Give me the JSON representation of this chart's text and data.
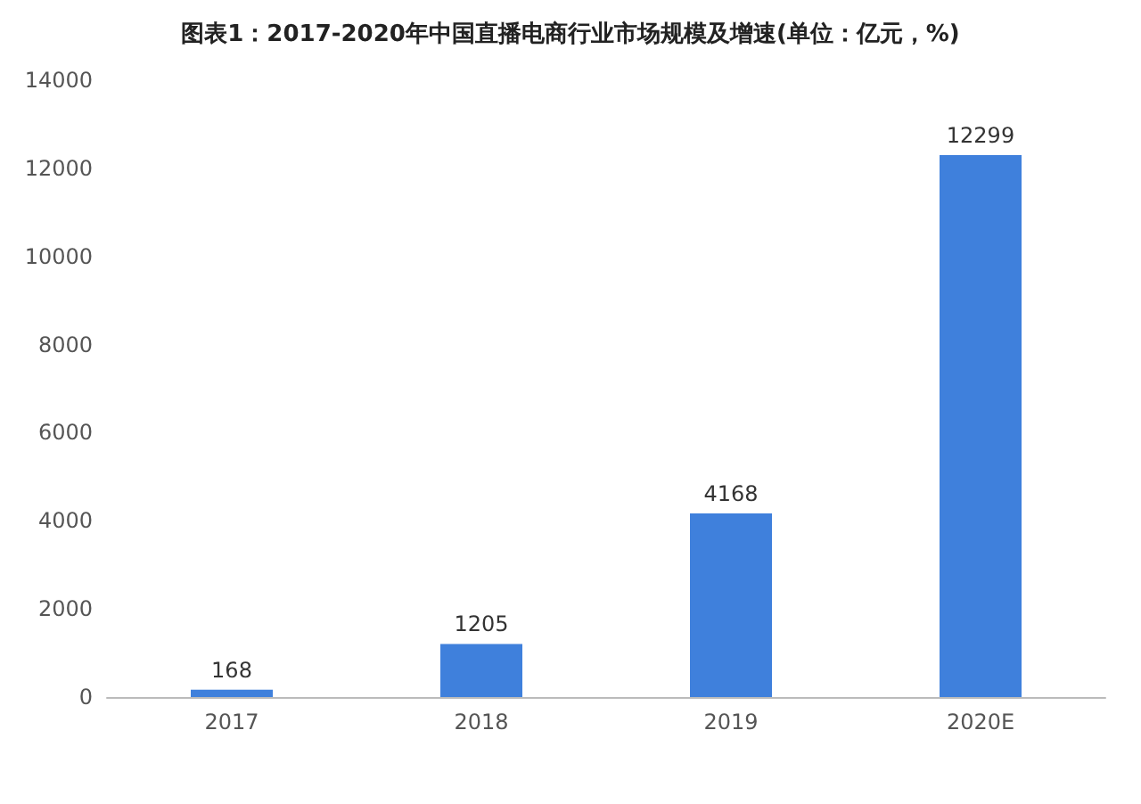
{
  "chart_data": {
    "type": "bar",
    "title": "图表1：2017-2020年中国直播电商行业市场规模及增速(单位：亿元，%)",
    "categories": [
      "2017",
      "2018",
      "2019",
      "2020E"
    ],
    "values": [
      168,
      1205,
      4168,
      12299
    ],
    "color": "#3f80dc",
    "ylim": [
      0,
      14000
    ],
    "yticks": [
      0,
      2000,
      4000,
      6000,
      8000,
      10000,
      12000,
      14000
    ],
    "grid": false,
    "data_labels": true
  }
}
